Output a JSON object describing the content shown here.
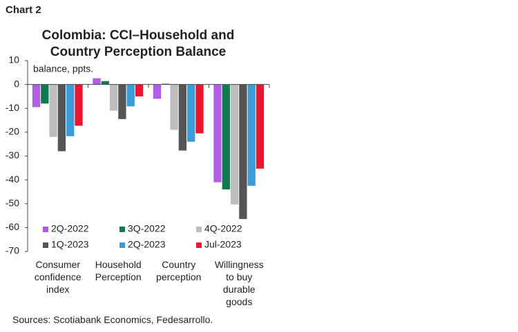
{
  "chart_data": {
    "type": "bar",
    "chart_label": "Chart 2",
    "title": "Colombia: CCI–Household and\nCountry Perception Balance",
    "y_label": "balance, ppts.",
    "source": "Sources: Scotiabank Economics, Fedesarrollo.",
    "categories": [
      "Consumer\nconfidence\nindex",
      "Household\nPerception",
      "Country\nperception",
      "Willingness\nto buy\ndurable\ngoods"
    ],
    "series": [
      {
        "name": "2Q-2022",
        "color": "#b05ce6",
        "values": [
          -9.5,
          2.6,
          -6,
          -41
        ]
      },
      {
        "name": "3Q-2022",
        "color": "#0f7a4f",
        "values": [
          -8,
          1.4,
          0.3,
          -44
        ]
      },
      {
        "name": "4Q-2022",
        "color": "#bdbdbd",
        "values": [
          -22,
          -11,
          -19,
          -50.3
        ]
      },
      {
        "name": "1Q-2023",
        "color": "#555555",
        "values": [
          -28,
          -14.5,
          -27.7,
          -56.4
        ]
      },
      {
        "name": "2Q-2023",
        "color": "#3a9bd9",
        "values": [
          -21.7,
          -9.2,
          -24,
          -42.5
        ]
      },
      {
        "name": "Jul-2023",
        "color": "#e8162e",
        "values": [
          -17.3,
          -5,
          -20.5,
          -35.3
        ]
      }
    ],
    "ylim": [
      -70,
      10
    ],
    "yticks": [
      -70,
      -60,
      -50,
      -40,
      -30,
      -20,
      -10,
      0,
      10
    ]
  }
}
